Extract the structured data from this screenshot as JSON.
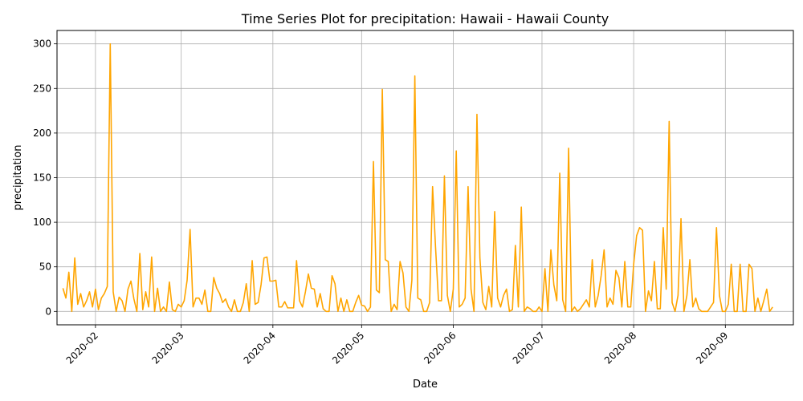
{
  "chart_data": {
    "type": "line",
    "title": "Time Series Plot for precipitation: Hawaii - Hawaii County",
    "xlabel": "Date",
    "ylabel": "precipitation",
    "x_type": "date",
    "xlim": [
      "2020-01-19",
      "2020-09-24"
    ],
    "ylim": [
      -15,
      315
    ],
    "x_ticks": [
      "2020-02",
      "2020-03",
      "2020-04",
      "2020-05",
      "2020-06",
      "2020-07",
      "2020-08",
      "2020-09"
    ],
    "x_tick_dates": [
      "2020-02-01",
      "2020-03-01",
      "2020-04-01",
      "2020-05-01",
      "2020-06-01",
      "2020-07-01",
      "2020-08-01",
      "2020-09-01"
    ],
    "y_ticks": [
      0,
      50,
      100,
      150,
      200,
      250,
      300
    ],
    "grid": true,
    "line_color": "#FFA500",
    "series": [
      {
        "start_date": "2020-01-21",
        "step_days": 1,
        "values": [
          26,
          15,
          44,
          0,
          60,
          8,
          20,
          5,
          12,
          22,
          5,
          25,
          2,
          15,
          20,
          28,
          300,
          22,
          0,
          16,
          12,
          0,
          25,
          34,
          14,
          0,
          65,
          2,
          22,
          5,
          61,
          0,
          26,
          0,
          5,
          0,
          33,
          2,
          0,
          8,
          5,
          12,
          35,
          92,
          5,
          15,
          15,
          8,
          24,
          0,
          0,
          38,
          26,
          20,
          10,
          14,
          5,
          0,
          13,
          0,
          0,
          10,
          31,
          0,
          57,
          8,
          10,
          30,
          60,
          61,
          34,
          34,
          35,
          5,
          5,
          11,
          4,
          4,
          4,
          57,
          12,
          5,
          22,
          42,
          26,
          25,
          5,
          20,
          3,
          0,
          0,
          40,
          31,
          0,
          15,
          0,
          13,
          0,
          0,
          10,
          18,
          7,
          6,
          0,
          5,
          168,
          24,
          21,
          249,
          58,
          56,
          0,
          8,
          2,
          56,
          43,
          5,
          0,
          35,
          264,
          15,
          13,
          0,
          0,
          10,
          140,
          72,
          12,
          12,
          152,
          18,
          0,
          25,
          180,
          5,
          8,
          15,
          140,
          25,
          0,
          221,
          60,
          10,
          2,
          28,
          5,
          112,
          15,
          5,
          18,
          25,
          0,
          2,
          74,
          5,
          117,
          0,
          5,
          3,
          0,
          0,
          5,
          0,
          48,
          0,
          69,
          30,
          12,
          155,
          13,
          0,
          183,
          0,
          5,
          0,
          3,
          8,
          13,
          5,
          58,
          5,
          18,
          40,
          69,
          5,
          15,
          8,
          46,
          38,
          5,
          56,
          5,
          5,
          53,
          85,
          94,
          91,
          0,
          23,
          12,
          56,
          3,
          3,
          94,
          25,
          213,
          10,
          0,
          18,
          104,
          0,
          18,
          58,
          5,
          15,
          3,
          0,
          0,
          0,
          5,
          10,
          94,
          18,
          0,
          0,
          8,
          53,
          0,
          0,
          53,
          0,
          0,
          53,
          48,
          0,
          15,
          0,
          12,
          25,
          0,
          5
        ]
      }
    ]
  }
}
